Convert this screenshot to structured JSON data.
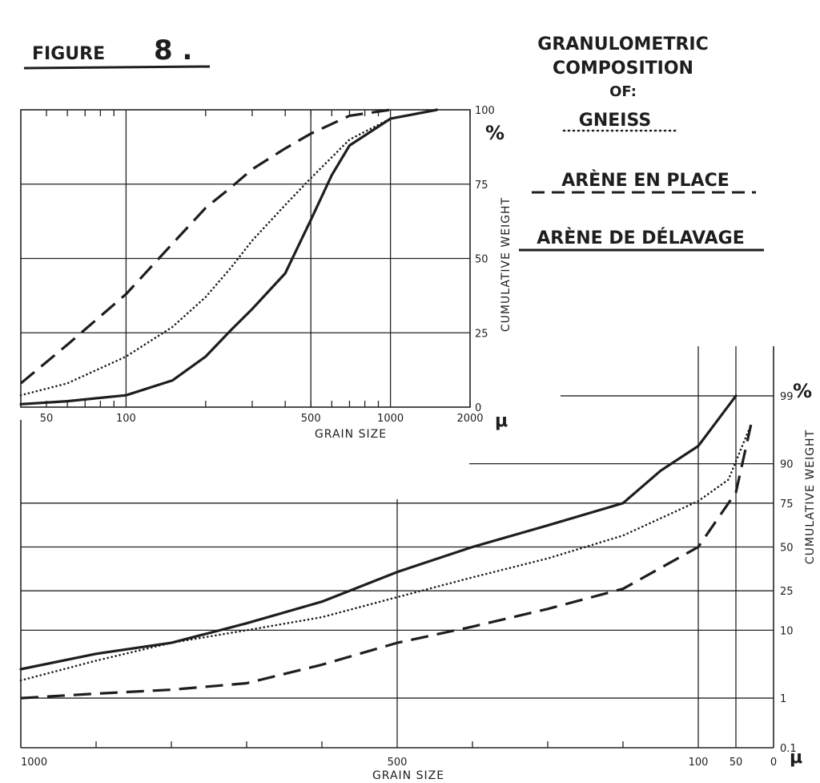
{
  "header": {
    "figure_label": "FIGURE",
    "figure_number": "8 ."
  },
  "title": {
    "line1": "GRANULOMETRIC",
    "line2": "COMPOSITION",
    "line3": "OF:"
  },
  "legend": [
    {
      "name": "GNEISS",
      "style": "dotted"
    },
    {
      "name": "ARÈNE EN PLACE",
      "style": "dashed"
    },
    {
      "name": "ARÈNE DE DÉLAVAGE",
      "style": "solid"
    }
  ],
  "colors": {
    "ink": "#1e1e1e",
    "paper": "#ffffff"
  },
  "chart_data": [
    {
      "type": "line",
      "xlabel": "GRAIN SIZE",
      "ylabel": "CUMULATIVE WEIGHT",
      "xscale": "log",
      "xlim": [
        40,
        2000
      ],
      "ylim": [
        0,
        100
      ],
      "x_unit": "μ",
      "y_unit": "%",
      "x_tick_labels": [
        {
          "value": 50,
          "label": "50"
        },
        {
          "value": 100,
          "label": "100"
        },
        {
          "value": 500,
          "label": "500"
        },
        {
          "value": 1000,
          "label": "1000"
        },
        {
          "value": 2000,
          "label": "2000"
        }
      ],
      "y_tick_labels": [
        {
          "value": 0,
          "label": "0"
        },
        {
          "value": 25,
          "label": "25"
        },
        {
          "value": 50,
          "label": "50"
        },
        {
          "value": 75,
          "label": "75"
        },
        {
          "value": 100,
          "label": "100"
        }
      ],
      "grid": true,
      "series": [
        {
          "name": "GNEISS",
          "style": "dotted",
          "x": [
            40,
            60,
            100,
            150,
            200,
            250,
            300,
            400,
            500,
            700,
            1000,
            1500
          ],
          "y": [
            4,
            8,
            17,
            27,
            37,
            47,
            56,
            68,
            77,
            90,
            97,
            100
          ]
        },
        {
          "name": "ARÈNE EN PLACE",
          "style": "dashed",
          "x": [
            40,
            60,
            100,
            150,
            200,
            250,
            300,
            400,
            500,
            700,
            1000
          ],
          "y": [
            8,
            21,
            38,
            55,
            67,
            74,
            80,
            87,
            92,
            98,
            100
          ]
        },
        {
          "name": "ARÈNE DE DÉLAVAGE",
          "style": "solid",
          "x": [
            40,
            60,
            100,
            150,
            200,
            250,
            300,
            400,
            500,
            600,
            700,
            1000,
            1500
          ],
          "y": [
            1,
            2,
            4,
            9,
            17,
            26,
            33,
            45,
            63,
            78,
            88,
            97,
            100
          ]
        }
      ]
    },
    {
      "type": "line",
      "xlabel": "GRAIN SIZE",
      "ylabel": "CUMULATIVE WEIGHT",
      "xscale": "linear",
      "xlim": [
        1000,
        0
      ],
      "yscale": "probability",
      "ylim": [
        0.1,
        99.9
      ],
      "x_unit": "μ",
      "y_unit": "%",
      "x_tick_labels": [
        {
          "value": 1000,
          "label": "1000"
        },
        {
          "value": 500,
          "label": "500"
        },
        {
          "value": 100,
          "label": "100"
        },
        {
          "value": 50,
          "label": "50"
        },
        {
          "value": 0,
          "label": "0"
        }
      ],
      "y_tick_labels": [
        {
          "value": 0.1,
          "label": "0.1"
        },
        {
          "value": 1,
          "label": "1"
        },
        {
          "value": 10,
          "label": "10"
        },
        {
          "value": 25,
          "label": "25"
        },
        {
          "value": 50,
          "label": "50"
        },
        {
          "value": 75,
          "label": "75"
        },
        {
          "value": 90,
          "label": "90"
        },
        {
          "value": 99,
          "label": "99"
        }
      ],
      "grid": true,
      "series": [
        {
          "name": "ARÈNE DE DÉLAVAGE",
          "style": "solid",
          "x": [
            1000,
            900,
            800,
            700,
            600,
            500,
            400,
            300,
            200,
            150,
            100,
            50
          ],
          "y": [
            3,
            5,
            7,
            12,
            20,
            35,
            50,
            63,
            75,
            88,
            94,
            99
          ]
        },
        {
          "name": "GNEISS",
          "style": "dotted",
          "x": [
            1000,
            900,
            800,
            700,
            600,
            500,
            400,
            300,
            200,
            100,
            60,
            30
          ],
          "y": [
            2,
            4,
            7,
            10,
            14,
            22,
            32,
            43,
            57,
            76,
            85,
            97
          ]
        },
        {
          "name": "ARÈNE EN PLACE",
          "style": "dashed",
          "x": [
            1000,
            900,
            800,
            700,
            600,
            500,
            400,
            300,
            200,
            100,
            50,
            30
          ],
          "y": [
            1,
            1.2,
            1.4,
            1.8,
            3.5,
            7,
            11,
            17,
            26,
            50,
            80,
            97
          ]
        }
      ]
    }
  ]
}
